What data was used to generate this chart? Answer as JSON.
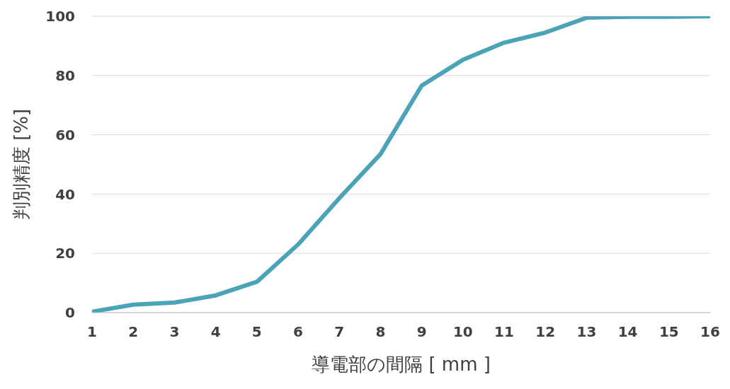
{
  "chart_data": {
    "type": "line",
    "xlabel": "導電部の間隔 [ mm ]",
    "ylabel": "判別精度 [%]",
    "x": [
      1,
      2,
      3,
      4,
      5,
      6,
      7,
      8,
      9,
      10,
      11,
      12,
      13,
      14,
      15,
      16
    ],
    "series": [
      {
        "color": "#4ba3b8",
        "values": [
          0.3,
          2.7,
          3.4,
          5.8,
          10.4,
          23,
          38.6,
          53.5,
          76.6,
          85.3,
          91.1,
          94.5,
          99.5,
          99.8,
          99.8,
          100
        ]
      }
    ],
    "xlim": [
      1,
      16
    ],
    "xticks": [
      1,
      2,
      3,
      4,
      5,
      6,
      7,
      8,
      9,
      10,
      11,
      12,
      13,
      14,
      15,
      16
    ],
    "ylim": [
      0,
      100
    ],
    "yticks": [
      0,
      20,
      40,
      60,
      80,
      100
    ],
    "grid": "y",
    "marker": "none",
    "line_style": "solid"
  }
}
